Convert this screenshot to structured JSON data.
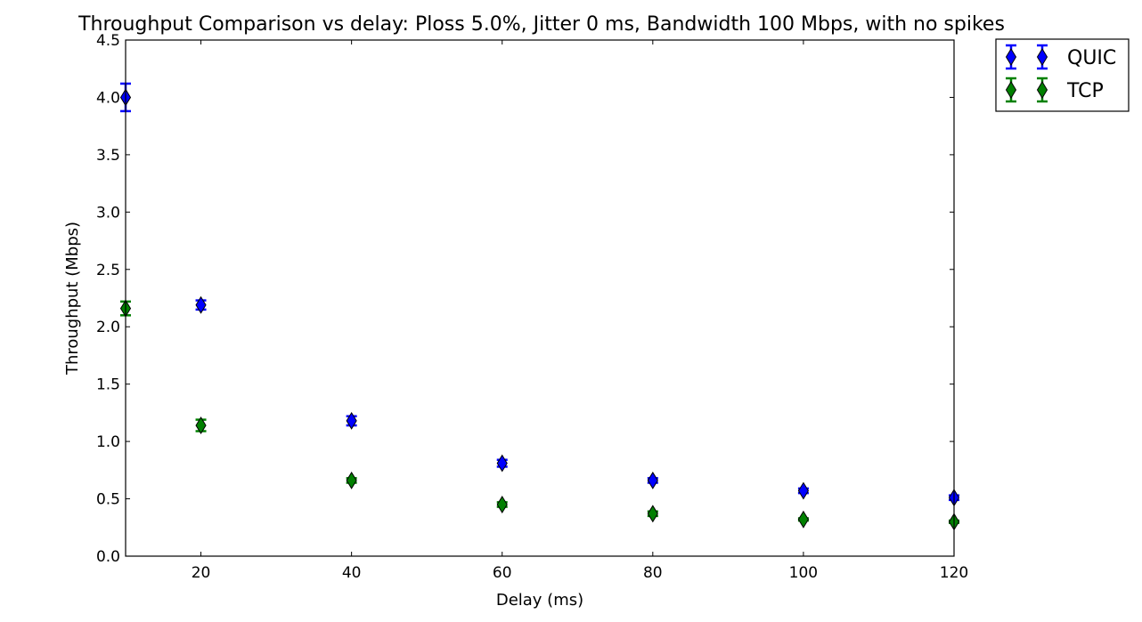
{
  "chart_data": {
    "type": "scatter",
    "title": "Throughput Comparison vs delay: Ploss 5.0%, Jitter 0 ms, Bandwidth 100 Mbps, with no spikes",
    "xlabel": "Delay (ms)",
    "ylabel": "Throughput (Mbps)",
    "xlim": [
      10,
      120
    ],
    "ylim": [
      0.0,
      4.5
    ],
    "xticks": [
      20,
      40,
      60,
      80,
      100,
      120
    ],
    "xtick_labels": [
      "20",
      "40",
      "60",
      "80",
      "100",
      "120"
    ],
    "yticks": [
      0.0,
      0.5,
      1.0,
      1.5,
      2.0,
      2.5,
      3.0,
      3.5,
      4.0,
      4.5
    ],
    "ytick_labels": [
      "0.0",
      "0.5",
      "1.0",
      "1.5",
      "2.0",
      "2.5",
      "3.0",
      "3.5",
      "4.0",
      "4.5"
    ],
    "grid": false,
    "legend_position": "outside-top-right",
    "marker": "thin-diamond",
    "series": [
      {
        "name": "QUIC",
        "color": "#0000ff",
        "x": [
          10,
          20,
          40,
          60,
          80,
          100,
          120
        ],
        "y": [
          4.0,
          2.19,
          1.18,
          0.81,
          0.66,
          0.57,
          0.51
        ],
        "err": [
          0.12,
          0.04,
          0.04,
          0.03,
          0.02,
          0.02,
          0.02
        ]
      },
      {
        "name": "TCP",
        "color": "#008000",
        "x": [
          10,
          20,
          40,
          60,
          80,
          100,
          120
        ],
        "y": [
          2.16,
          1.14,
          0.66,
          0.45,
          0.37,
          0.32,
          0.3
        ],
        "err": [
          0.06,
          0.05,
          0.02,
          0.02,
          0.02,
          0.01,
          0.01
        ]
      }
    ]
  }
}
